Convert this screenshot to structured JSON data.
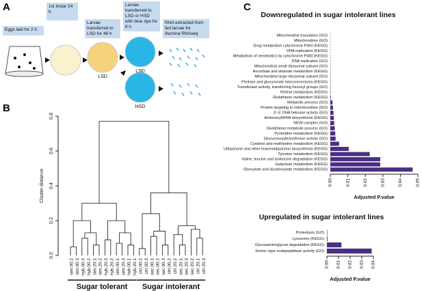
{
  "figure": {
    "panel_labels": [
      "A",
      "B",
      "C"
    ],
    "protocol": {
      "steps": [
        "Eggs laid for 2 h",
        "1st instar 24 h",
        "Larvae transferred to LSD for 48 h",
        "Larvae transferred to LSD or HSD with blue dye for 8 h",
        "RNA extracted from fed larvae for Illumina RNAseq"
      ],
      "diet_labels": [
        "LSD",
        "LSD",
        "HSD"
      ]
    }
  },
  "chart_data": [
    {
      "type": "dendrogram",
      "ylabel": "Cluster distance",
      "ylim": [
        0,
        0.8
      ],
      "yticks": [
        {
          "value": 0,
          "label": "0.0"
        },
        0.2,
        0.4,
        0.6,
        0.8
      ],
      "groups": [
        "Sugar tolerant",
        "Sugar intolerant"
      ],
      "tree": {
        "height": 0.77,
        "children": [
          {
            "height": 0.3,
            "children": [
              {
                "height": 0.2,
                "children": [
                  {
                    "height": 0.05,
                    "children": [
                      {
                        "label": "sim.00.2",
                        "color": "#3b3ba8"
                      },
                      {
                        "label": "sim.00.3",
                        "color": "#3b3ba8"
                      }
                    ]
                  },
                  {
                    "height": 0.13,
                    "children": [
                      {
                        "height": 0.1,
                        "children": [
                          {
                            "label": "hyb.00.3",
                            "color": "#8b5a2b"
                          },
                          {
                            "label": "hyb.00.2",
                            "color": "#8b5a2b"
                          }
                        ]
                      },
                      {
                        "height": 0.06,
                        "children": [
                          {
                            "label": "sim.20.1",
                            "color": "#a64ca6"
                          },
                          {
                            "label": "sim.20.2",
                            "color": "#a64ca6"
                          }
                        ]
                      }
                    ]
                  }
                ]
              },
              {
                "height": 0.2,
                "children": [
                  {
                    "height": 0.09,
                    "children": [
                      {
                        "label": "hyb.20.3",
                        "color": "#c8912a"
                      },
                      {
                        "label": "hyb.20.2",
                        "color": "#c8912a"
                      }
                    ]
                  },
                  {
                    "height": 0.13,
                    "children": [
                      {
                        "height": 0.07,
                        "children": [
                          {
                            "label": "sim.00.1",
                            "color": "#3b3ba8"
                          },
                          {
                            "label": "sim.20.3",
                            "color": "#a64ca6"
                          }
                        ]
                      },
                      {
                        "height": 0.06,
                        "children": [
                          {
                            "label": "hyb.00.1",
                            "color": "#8b5a2b"
                          },
                          {
                            "label": "hyb.20.1",
                            "color": "#c8912a"
                          }
                        ]
                      }
                    ]
                  }
                ]
              }
            ]
          },
          {
            "height": 0.36,
            "children": [
              {
                "height": 0.24,
                "children": [
                  {
                    "height": 0.04,
                    "children": [
                      {
                        "label": "ctrl.00.1",
                        "color": "#1f3f8f"
                      },
                      {
                        "label": "ctrl.00.3",
                        "color": "#1f3f8f"
                      }
                    ]
                  },
                  {
                    "height": 0.14,
                    "children": [
                      {
                        "height": 0.11,
                        "children": [
                          {
                            "label": "sec.00.1",
                            "color": "#333333"
                          },
                          {
                            "label": "sec.00.2",
                            "color": "#333333"
                          }
                        ]
                      },
                      {
                        "height": 0.06,
                        "children": [
                          {
                            "label": "sec.00.3",
                            "color": "#333333"
                          },
                          {
                            "label": "ctrl.00.2",
                            "color": "#1f3f8f"
                          }
                        ]
                      }
                    ]
                  }
                ]
              },
              {
                "height": 0.17,
                "children": [
                  {
                    "height": 0.12,
                    "children": [
                      {
                        "label": "ctrl.20.2",
                        "color": "#2a9fd6"
                      },
                      {
                        "height": 0.06,
                        "children": [
                          {
                            "label": "sec.20.1",
                            "color": "#3a9a3a"
                          },
                          {
                            "label": "sec.20.3",
                            "color": "#3a9a3a"
                          }
                        ]
                      }
                    ]
                  },
                  {
                    "height": 0.15,
                    "children": [
                      {
                        "label": "sec.20.2",
                        "color": "#3a9a3a"
                      },
                      {
                        "height": 0.1,
                        "children": [
                          {
                            "label": "ctrl.20.1",
                            "color": "#2a9fd6"
                          },
                          {
                            "label": "ctrl.20.3",
                            "color": "#2a9fd6"
                          }
                        ]
                      }
                    ]
                  }
                ]
              }
            ]
          }
        ]
      }
    },
    {
      "type": "bar",
      "title": "Downregulated in sugar intolerant lines",
      "xlabel": "Adjusted P.value",
      "color": "#4b2e83",
      "categories": [
        "Mitochondrial translation (GO)",
        "Mitochondrion (GO)",
        "Drug metabolism cytochrome P450 (KEGG)",
        "DNA replication (KEGG)",
        "Metabolism of xenobiotics by cytochrome P450 (KEGG)",
        "DNA replication (GO)",
        "Mitochondrial small ribosomal subunit (GO)",
        "Ascorbate and aldarate metabolism (KEGG)",
        "Mitochondrial large ribosomal subunit (GO)",
        "Pentose and glucuronate interconversions (KEGG)",
        "Transferase activity, transferring hexosyl groups (GO)",
        "Retinol metabolism (KEGG)",
        "Glutathione metabolism (KEGG)",
        "Metabolic process (GO)",
        "Protein targeting to mitochondrion (GO)",
        "3'–5' DNA helicase activity (GO)",
        "AminoacyltRNA biosynthesis (KEGG)",
        "MCM complex (GO)",
        "Glutathione metabolic process (GO)",
        "Pyrimidine metabolism (KEGG)",
        "Glucuronosyltransferase activity (GO)",
        "Cysteine and methionine metabolism (KEGG)",
        "Ubiquinone and other terpenoidquinone biosynthesis (KEGG)",
        "Tyrosine metabolism (KEGG)",
        "Valine, leucine and isoleucine degradation (KEGG)",
        "Galactose metabolism (KEGG)",
        "Glyoxylate and dicarboxylate metabolism (KEGG)"
      ],
      "values": [
        1e-05,
        2e-05,
        3e-05,
        4e-05,
        5e-05,
        6e-05,
        8e-05,
        0.0001,
        0.00012,
        0.00014,
        0.00016,
        0.0002,
        0.0003,
        0.0012,
        0.0015,
        0.0018,
        0.002,
        0.0022,
        0.0025,
        0.0028,
        0.003,
        0.005,
        0.0105,
        0.0225,
        0.0285,
        0.0285,
        0.047
      ],
      "xlim": [
        0,
        0.05
      ],
      "xticks": [
        {
          "value": 0,
          "label": "0.00"
        },
        0.01,
        0.02,
        0.03,
        0.04,
        0.05
      ]
    },
    {
      "type": "bar",
      "title": "Upregulated in sugar intolerant lines",
      "xlabel": "Adjusted P.value",
      "color": "#4b2e83",
      "categories": [
        "Proteolysis (GO)",
        "Lysosome (KEGG)",
        "Glycosaminoglycan degradation (KEGG)",
        "Serine−type endopeptidase activity (GO)"
      ],
      "values": [
        0.0003,
        0.0005,
        0.0125,
        0.0385
      ],
      "xlim": [
        0,
        0.04
      ],
      "xticks": [
        {
          "value": 0,
          "label": "0.00"
        },
        0.01,
        0.02,
        0.03,
        0.04
      ]
    }
  ]
}
